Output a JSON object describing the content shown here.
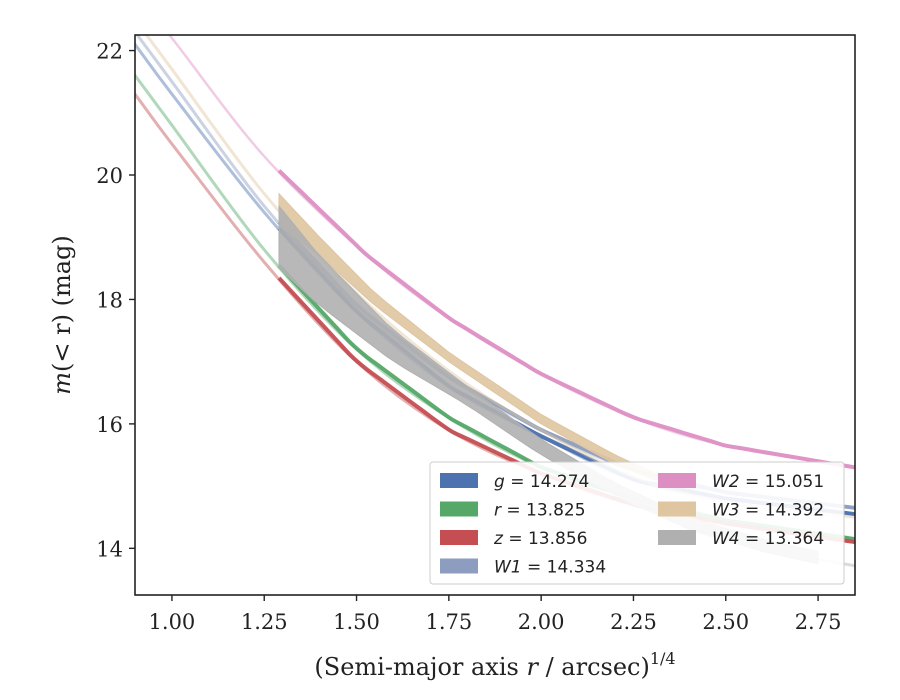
{
  "chart_data": {
    "type": "line",
    "xlabel_main": "(Semi-major axis ",
    "xlabel_var": "r",
    "xlabel_rest": " / arcsec)",
    "xlabel_exp": "1/4",
    "ylabel_prefix": "m",
    "ylabel_inner": "(< r)",
    "ylabel_suffix": " (mag)",
    "xlim": [
      0.9,
      2.85
    ],
    "ylim": [
      22.25,
      13.25
    ],
    "y_inverted": true,
    "xticks": [
      "1.00",
      "1.25",
      "1.50",
      "1.75",
      "2.00",
      "2.25",
      "2.50",
      "2.75"
    ],
    "xtick_values": [
      1.0,
      1.25,
      1.5,
      1.75,
      2.0,
      2.25,
      2.5,
      2.75
    ],
    "yticks": [
      "14",
      "16",
      "18",
      "20",
      "22"
    ],
    "ytick_values": [
      14,
      16,
      18,
      20,
      22
    ],
    "grid": false,
    "legend_position": "lower-right",
    "series": [
      {
        "name": "g",
        "legend_label": "g = 14.274",
        "var": "g",
        "value_text": " = 14.274",
        "color": "#4c72b0",
        "fit": {
          "x": [
            0.9,
            1.0,
            1.25,
            1.5,
            1.75,
            2.0,
            2.25,
            2.5,
            2.85
          ],
          "y": [
            22.1,
            21.3,
            19.4,
            17.8,
            16.6,
            15.8,
            15.1,
            14.8,
            14.55
          ]
        },
        "fit_width": 3,
        "measured_x_range": [
          1.29,
          2.85
        ],
        "measured_width": 4
      },
      {
        "name": "r",
        "legend_label": "r = 13.825",
        "var": "r",
        "value_text": " = 13.825",
        "color": "#55a868",
        "fit": {
          "x": [
            0.9,
            1.0,
            1.25,
            1.5,
            1.75,
            2.0,
            2.25,
            2.5,
            2.85
          ],
          "y": [
            21.6,
            20.8,
            18.8,
            17.2,
            16.1,
            15.3,
            14.8,
            14.45,
            14.15
          ]
        },
        "fit_width": 3,
        "measured_x_range": [
          1.29,
          2.85
        ],
        "measured_width": 4
      },
      {
        "name": "z",
        "legend_label": "z = 13.856",
        "var": "z",
        "value_text": " = 13.856",
        "color": "#c44e52",
        "fit": {
          "x": [
            0.9,
            1.0,
            1.25,
            1.5,
            1.75,
            2.0,
            2.25,
            2.5,
            2.85
          ],
          "y": [
            21.3,
            20.5,
            18.6,
            17.0,
            15.9,
            15.2,
            14.7,
            14.4,
            14.1
          ]
        },
        "fit_width": 3,
        "measured_x_range": [
          1.29,
          2.85
        ],
        "measured_width": 4
      },
      {
        "name": "W1",
        "legend_label": "W1 = 14.334",
        "var": "W1",
        "value_text": " = 14.334",
        "color": "#8c9dbf",
        "fit": {
          "x": [
            0.9,
            1.0,
            1.25,
            1.5,
            1.75,
            2.0,
            2.25,
            2.5,
            2.85
          ],
          "y": [
            22.3,
            21.5,
            19.5,
            17.9,
            16.75,
            15.9,
            15.25,
            14.9,
            14.65
          ]
        },
        "fit_width": 3,
        "measured_x_range": [
          1.29,
          2.85
        ],
        "measured_width": 4
      },
      {
        "name": "W2",
        "legend_label": "W2 = 15.051",
        "var": "W2",
        "value_text": " = 15.051",
        "color": "#dd8fc4",
        "fit": {
          "x": [
            0.9,
            1.0,
            1.25,
            1.53,
            1.75,
            2.0,
            2.25,
            2.5,
            2.85
          ],
          "y": [
            22.9,
            22.2,
            20.3,
            18.7,
            17.7,
            16.8,
            16.1,
            15.65,
            15.3
          ]
        },
        "fit_width": 2.5,
        "measured_x_range": [
          1.29,
          2.85
        ],
        "measured_width": 4
      },
      {
        "name": "W3",
        "legend_label": "W3 = 14.392",
        "var": "W3",
        "value_text": " = 14.392",
        "color": "#dfc5a0",
        "fit": {
          "x": [
            0.9,
            1.0,
            1.25,
            1.5,
            1.75,
            2.0,
            2.25,
            2.5,
            2.85
          ],
          "y": [
            22.5,
            21.7,
            19.7,
            18.1,
            16.85,
            15.9,
            15.15,
            14.75,
            14.5
          ]
        },
        "fit_width": 3,
        "band_x": [
          1.29,
          1.4,
          1.55,
          1.75,
          2.0,
          2.2,
          2.35
        ],
        "band_upper": [
          19.2,
          18.7,
          17.9,
          17.0,
          16.0,
          15.35,
          15.0
        ],
        "band_lower": [
          19.7,
          19.0,
          18.1,
          17.15,
          16.15,
          15.5,
          15.1
        ]
      },
      {
        "name": "W4",
        "legend_label": "W4 = 13.364",
        "var": "W4",
        "value_text": " = 13.364",
        "color": "#b0b0b0",
        "fit": {
          "x": [
            2.75,
            2.85
          ],
          "y": [
            13.82,
            13.72
          ]
        },
        "fit_width": 3,
        "band_x": [
          1.29,
          1.4,
          1.6,
          1.8,
          2.0,
          2.2,
          2.4,
          2.6,
          2.75
        ],
        "band_upper": [
          18.5,
          17.9,
          17.0,
          16.3,
          15.5,
          14.85,
          14.3,
          13.95,
          13.75
        ],
        "band_lower": [
          19.5,
          18.7,
          17.5,
          16.6,
          15.75,
          15.05,
          14.5,
          14.15,
          13.95
        ]
      }
    ]
  }
}
